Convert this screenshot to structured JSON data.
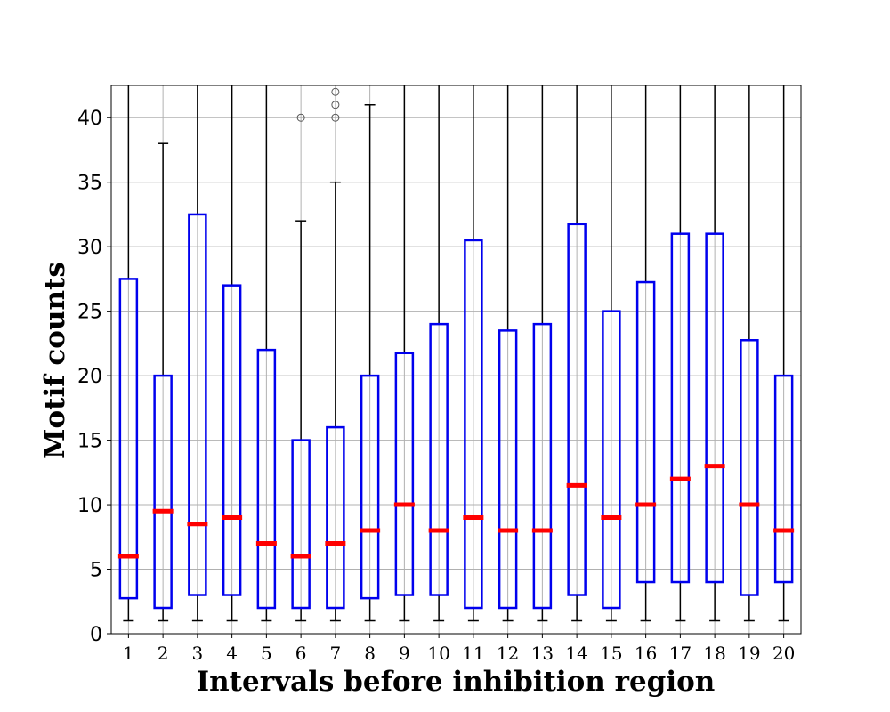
{
  "chart_data": {
    "type": "box",
    "xlabel": "Intervals before inhibition region",
    "ylabel": "Motif counts",
    "ylim": [
      0,
      42.5
    ],
    "yticks": [
      0,
      5,
      10,
      15,
      20,
      25,
      30,
      35,
      40
    ],
    "grid": true,
    "colors": {
      "box": "#0000ee",
      "median": "#ff0000",
      "whisker": "#000000",
      "grid": "#b0b0b0",
      "outlier": "#555555"
    },
    "categories": [
      "1",
      "2",
      "3",
      "4",
      "5",
      "6",
      "7",
      "8",
      "9",
      "10",
      "11",
      "12",
      "13",
      "14",
      "15",
      "16",
      "17",
      "18",
      "19",
      "20"
    ],
    "boxes": [
      {
        "label": "1",
        "whisker_low": 1,
        "q1": 2.75,
        "median": 6,
        "q3": 27.5,
        "whisker_high": 43,
        "outliers": []
      },
      {
        "label": "2",
        "whisker_low": 1,
        "q1": 2,
        "median": 9.5,
        "q3": 20,
        "whisker_high": 38,
        "outliers": []
      },
      {
        "label": "3",
        "whisker_low": 1,
        "q1": 3,
        "median": 8.5,
        "q3": 32.5,
        "whisker_high": 43,
        "outliers": []
      },
      {
        "label": "4",
        "whisker_low": 1,
        "q1": 3,
        "median": 9,
        "q3": 27,
        "whisker_high": 43,
        "outliers": []
      },
      {
        "label": "5",
        "whisker_low": 1,
        "q1": 2,
        "median": 7,
        "q3": 22,
        "whisker_high": 43,
        "outliers": []
      },
      {
        "label": "6",
        "whisker_low": 1,
        "q1": 2,
        "median": 6,
        "q3": 15,
        "whisker_high": 32,
        "outliers": [
          40
        ]
      },
      {
        "label": "7",
        "whisker_low": 1,
        "q1": 2,
        "median": 7,
        "q3": 16,
        "whisker_high": 35,
        "outliers": [
          40,
          41,
          42
        ]
      },
      {
        "label": "8",
        "whisker_low": 1,
        "q1": 2.75,
        "median": 8,
        "q3": 20,
        "whisker_high": 41,
        "outliers": []
      },
      {
        "label": "9",
        "whisker_low": 1,
        "q1": 3,
        "median": 10,
        "q3": 21.75,
        "whisker_high": 43,
        "outliers": []
      },
      {
        "label": "10",
        "whisker_low": 1,
        "q1": 3,
        "median": 8,
        "q3": 24,
        "whisker_high": 43,
        "outliers": []
      },
      {
        "label": "11",
        "whisker_low": 1,
        "q1": 2,
        "median": 9,
        "q3": 30.5,
        "whisker_high": 43,
        "outliers": []
      },
      {
        "label": "12",
        "whisker_low": 1,
        "q1": 2,
        "median": 8,
        "q3": 23.5,
        "whisker_high": 43,
        "outliers": []
      },
      {
        "label": "13",
        "whisker_low": 1,
        "q1": 2,
        "median": 8,
        "q3": 24,
        "whisker_high": 43,
        "outliers": []
      },
      {
        "label": "14",
        "whisker_low": 1,
        "q1": 3,
        "median": 11.5,
        "q3": 31.75,
        "whisker_high": 43,
        "outliers": []
      },
      {
        "label": "15",
        "whisker_low": 1,
        "q1": 2,
        "median": 9,
        "q3": 25,
        "whisker_high": 43,
        "outliers": []
      },
      {
        "label": "16",
        "whisker_low": 1,
        "q1": 4,
        "median": 10,
        "q3": 27.25,
        "whisker_high": 43,
        "outliers": []
      },
      {
        "label": "17",
        "whisker_low": 1,
        "q1": 4,
        "median": 12,
        "q3": 31,
        "whisker_high": 43,
        "outliers": []
      },
      {
        "label": "18",
        "whisker_low": 1,
        "q1": 4,
        "median": 13,
        "q3": 31,
        "whisker_high": 43,
        "outliers": []
      },
      {
        "label": "19",
        "whisker_low": 1,
        "q1": 3,
        "median": 10,
        "q3": 22.75,
        "whisker_high": 43,
        "outliers": []
      },
      {
        "label": "20",
        "whisker_low": 1,
        "q1": 4,
        "median": 8,
        "q3": 20,
        "whisker_high": 43,
        "outliers": []
      }
    ]
  }
}
